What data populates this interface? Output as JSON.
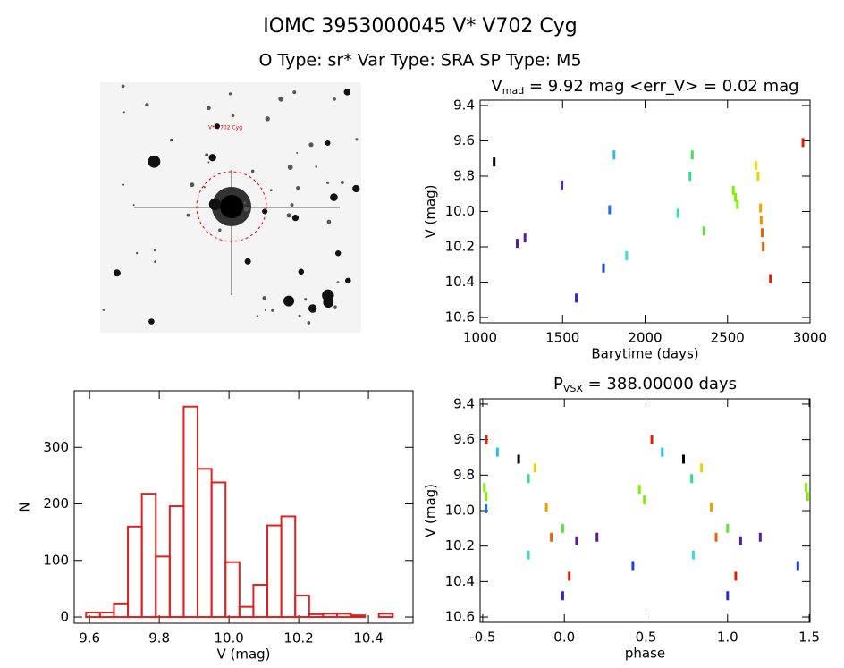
{
  "header": {
    "title": "IOMC 3953000045     V* V702 Cyg",
    "subtitle": "O Type: sr*  Var Type: SRA  SP Type: M5"
  },
  "image": {
    "label": "V* V702 Cyg"
  },
  "chart_data": [
    {
      "type": "scatter",
      "title": {
        "text": "V",
        "subscript": "mad",
        "rest": " = 9.92 mag <err_V> = 0.02 mag"
      },
      "xlabel": "Barytime (days)",
      "ylabel": "V (mag)",
      "xlim": [
        1000,
        3000
      ],
      "xticks": [
        1000,
        1500,
        2000,
        2500,
        3000
      ],
      "ylim": [
        9.37,
        10.63
      ],
      "y_inverted": true,
      "yticks": [
        9.4,
        9.6,
        9.8,
        {
          "value": 10,
          "label": "10.0"
        },
        10.2,
        10.4,
        10.6
      ],
      "x": [
        1085,
        1225,
        1272,
        1496,
        1583,
        1748,
        1785,
        1812,
        1888,
        2199,
        2272,
        2286,
        2357,
        2535,
        2548,
        2560,
        2672,
        2685,
        2700,
        2704,
        2710,
        2716,
        2760,
        2957
      ],
      "values": [
        9.72,
        10.18,
        10.15,
        9.85,
        10.49,
        10.32,
        9.99,
        9.68,
        10.25,
        10.01,
        9.8,
        9.68,
        10.11,
        9.88,
        9.92,
        9.96,
        9.74,
        9.8,
        9.98,
        10.05,
        10.12,
        10.2,
        10.38,
        9.61
      ],
      "colors": [
        "#000000",
        "#5a1a9a",
        "#5a1a9a",
        "#4a2aa8",
        "#2a2ad0",
        "#2040d8",
        "#2070e0",
        "#20c0e8",
        "#30e0d0",
        "#30e0b0",
        "#30e080",
        "#40e060",
        "#60e040",
        "#80f000",
        "#80f000",
        "#80f000",
        "#f0e000",
        "#f0d000",
        "#f0a000",
        "#f09000",
        "#f06000",
        "#f06000",
        "#e02000",
        "#e02000"
      ]
    },
    {
      "type": "histogram",
      "xlabel": "V (mag)",
      "ylabel": "N",
      "color": "#e02020",
      "xlim": [
        9.556,
        10.528
      ],
      "xticks": [
        9.6,
        9.8,
        {
          "value": 10,
          "label": "10.0"
        },
        10.2,
        10.4
      ],
      "ylim": [
        -11,
        400
      ],
      "yticks": [
        0,
        100,
        200,
        300
      ],
      "bins": [
        9.59,
        9.63,
        9.67,
        9.71,
        9.75,
        9.79,
        9.83,
        9.87,
        9.91,
        9.95,
        9.99,
        10.03,
        10.07,
        10.11,
        10.15,
        10.19,
        10.23,
        10.27,
        10.31,
        10.35,
        10.39,
        10.43,
        10.47
      ],
      "values": [
        8,
        8,
        24,
        160,
        218,
        107,
        196,
        372,
        262,
        238,
        97,
        18,
        57,
        162,
        178,
        38,
        5,
        6,
        6,
        3,
        0,
        6
      ]
    },
    {
      "type": "scatter",
      "title": {
        "text": "P",
        "subscript": "VSX",
        "rest": " = 388.00000 days"
      },
      "xlabel": "phase",
      "ylabel": "V (mag)",
      "xlim": [
        -0.516,
        1.505
      ],
      "xticks": [
        -0.5,
        {
          "value": 0,
          "label": "0.0"
        },
        0.5,
        {
          "value": 1,
          "label": "1.0"
        },
        1.5
      ],
      "ylim": [
        9.37,
        10.63
      ],
      "y_inverted": true,
      "yticks": [
        9.4,
        9.6,
        9.8,
        {
          "value": 10,
          "label": "10.0"
        },
        10.2,
        10.4,
        10.6
      ],
      "x": [
        -0.478,
        0.536,
        -0.41,
        0.6,
        -0.28,
        0.73,
        -0.22,
        0.78,
        -0.18,
        0.84,
        -0.49,
        -0.48,
        0.46,
        0.49,
        1.48,
        1.49,
        -0.22,
        0.79,
        -0.11,
        0.9,
        -0.08,
        0.93,
        -0.01,
        1.0,
        0.03,
        1.05,
        -0.01,
        1.0,
        0.075,
        1.08,
        0.2,
        1.2,
        0.42,
        1.43,
        -0.48
      ],
      "values": [
        9.6,
        9.6,
        9.67,
        9.67,
        9.71,
        9.71,
        9.82,
        9.82,
        9.76,
        9.76,
        9.87,
        9.92,
        9.88,
        9.94,
        9.87,
        9.92,
        10.25,
        10.25,
        9.98,
        9.98,
        10.15,
        10.15,
        10.1,
        10.1,
        10.37,
        10.37,
        10.48,
        10.48,
        10.17,
        10.17,
        10.15,
        10.15,
        10.31,
        10.31,
        9.99
      ],
      "colors": [
        "#e02000",
        "#e02000",
        "#20c0e8",
        "#20c0e8",
        "#000000",
        "#000000",
        "#30e080",
        "#30e080",
        "#f0d000",
        "#f0d000",
        "#80f000",
        "#80f000",
        "#80f000",
        "#80f000",
        "#80f000",
        "#80f000",
        "#30e0d0",
        "#30e0d0",
        "#f0a000",
        "#f0a000",
        "#f06000",
        "#f06000",
        "#60e040",
        "#60e040",
        "#e02000",
        "#e02000",
        "#2a2ad0",
        "#2a2ad0",
        "#5a1a9a",
        "#5a1a9a",
        "#5a1a9a",
        "#5a1a9a",
        "#2040d8",
        "#2040d8",
        "#2070e0"
      ]
    }
  ]
}
